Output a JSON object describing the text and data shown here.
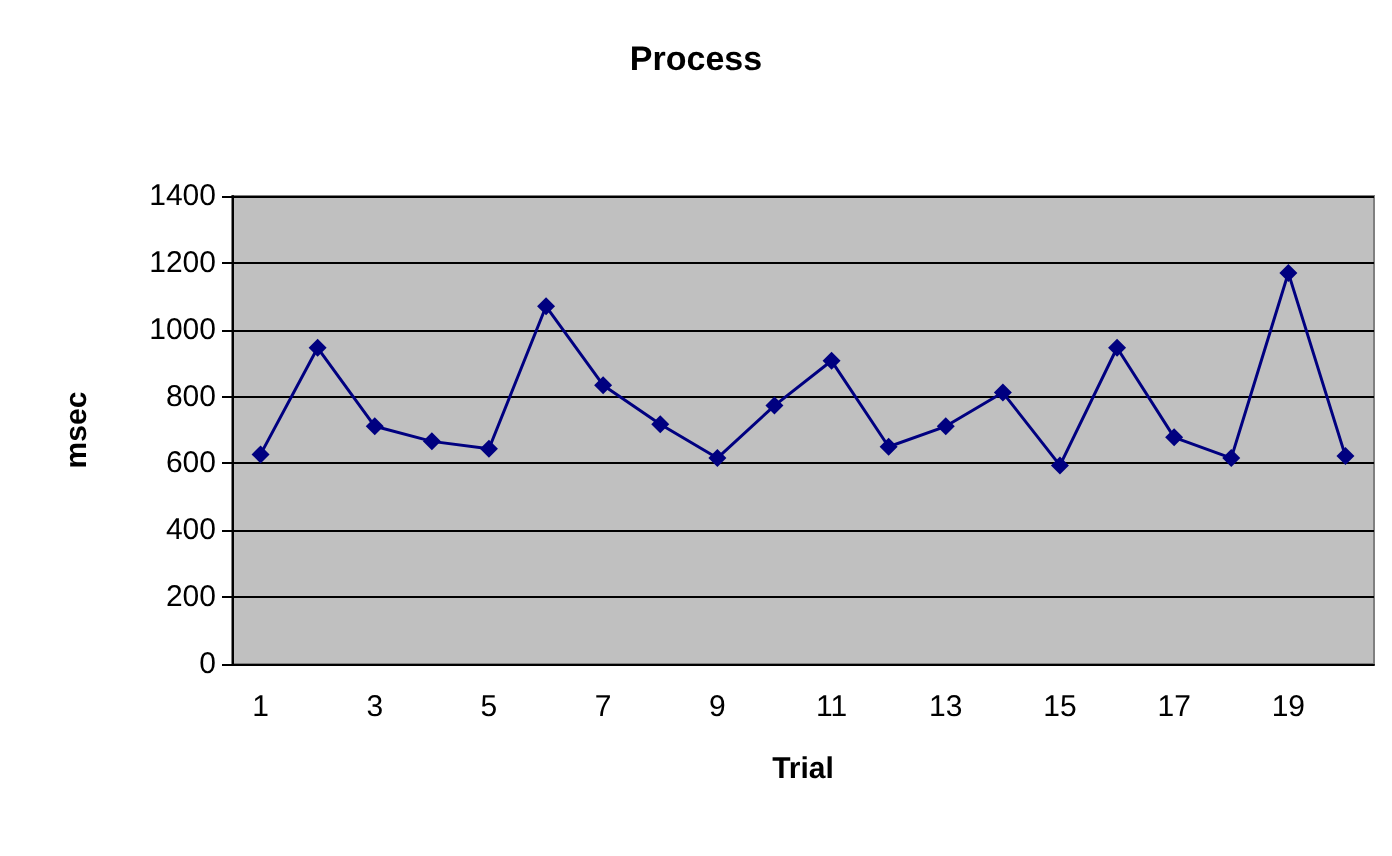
{
  "chart_data": {
    "type": "line",
    "title": "Process",
    "xlabel": "Trial",
    "ylabel": "msec",
    "x": [
      1,
      2,
      3,
      4,
      5,
      6,
      7,
      8,
      9,
      10,
      11,
      12,
      13,
      14,
      15,
      16,
      17,
      18,
      19,
      20
    ],
    "series": [
      {
        "color": "#000080",
        "values": [
          627,
          946,
          711,
          666,
          644,
          1070,
          834,
          717,
          616,
          773,
          907,
          650,
          711,
          812,
          594,
          946,
          678,
          616,
          1170,
          622
        ]
      }
    ],
    "xlim": [
      0.5,
      20.5
    ],
    "xticks": [
      1,
      3,
      5,
      7,
      9,
      11,
      13,
      15,
      17,
      19
    ],
    "ylim": [
      0,
      1400
    ],
    "yticks": [
      0,
      200,
      400,
      600,
      800,
      1000,
      1200,
      1400
    ],
    "grid": "y",
    "marker": "diamond",
    "line_style": "solid"
  }
}
